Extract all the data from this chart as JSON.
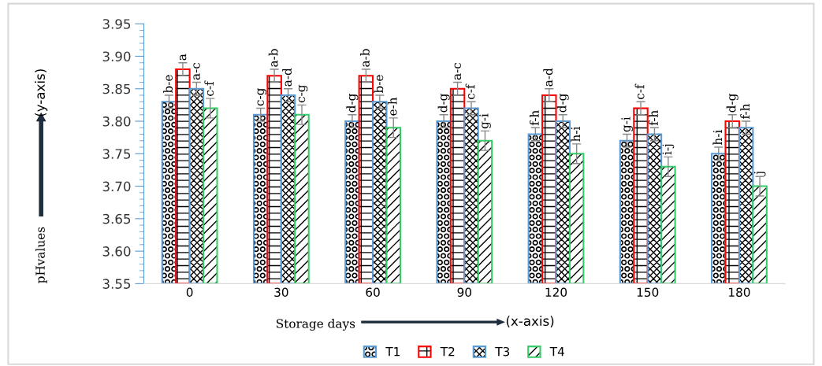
{
  "chart_data": {
    "type": "bar",
    "xlabel": "Storage days",
    "ylabel": "pHvalues",
    "annotations": [
      "(y-axis)",
      "(x-axis)"
    ],
    "categories": [
      "0",
      "30",
      "60",
      "90",
      "120",
      "150",
      "180"
    ],
    "ylim": [
      3.55,
      3.95
    ],
    "yticks": [
      {
        "value": 3.55,
        "label": "3.55"
      },
      {
        "value": 3.6,
        "label": "3.60"
      },
      {
        "value": 3.65,
        "label": "3.65"
      },
      {
        "value": 3.7,
        "label": "3.70"
      },
      {
        "value": 3.75,
        "label": "3.75"
      },
      {
        "value": 3.8,
        "label": "3.80"
      },
      {
        "value": 3.85,
        "label": "3.85"
      },
      {
        "value": 3.9,
        "label": "3.90"
      },
      {
        "value": 3.95,
        "label": "3.95"
      }
    ],
    "grid": false,
    "legend": "bottom",
    "series": [
      {
        "name": "T1",
        "color": "#5b9bd5",
        "values": [
          3.83,
          3.81,
          3.8,
          3.8,
          3.78,
          3.77,
          3.75
        ],
        "errors": [
          0.01,
          0.01,
          0.01,
          0.01,
          0.01,
          0.01,
          0.01
        ],
        "value_labels": [
          "b-e",
          "c-g",
          "d-g",
          "d-g",
          "f-h",
          "g-i",
          "h-i"
        ]
      },
      {
        "name": "T2",
        "color": "#ff0000",
        "values": [
          3.88,
          3.87,
          3.87,
          3.85,
          3.84,
          3.82,
          3.8
        ],
        "errors": [
          0.01,
          0.01,
          0.01,
          0.01,
          0.01,
          0.01,
          0.01
        ],
        "value_labels": [
          "a",
          "a-b",
          "a-b",
          "a-c",
          "a-d",
          "c-f",
          "d-g"
        ]
      },
      {
        "name": "T3",
        "color": "#5b9bd5",
        "values": [
          3.85,
          3.84,
          3.83,
          3.82,
          3.8,
          3.78,
          3.79
        ],
        "errors": [
          0.01,
          0.01,
          0.01,
          0.01,
          0.01,
          0.01,
          0.01
        ],
        "value_labels": [
          "a-c",
          "a-d",
          "b-e",
          "c-f",
          "d-g",
          "f-h",
          "f-h"
        ]
      },
      {
        "name": "T4",
        "color": "#33cc66",
        "values": [
          3.82,
          3.81,
          3.79,
          3.77,
          3.75,
          3.73,
          3.7
        ],
        "errors": [
          0.015,
          0.015,
          0.015,
          0.015,
          0.015,
          0.015,
          0.015
        ],
        "value_labels": [
          "c-f",
          "c-g",
          "e-h",
          "g-i",
          "h-i",
          "i-j",
          "j"
        ]
      }
    ]
  }
}
